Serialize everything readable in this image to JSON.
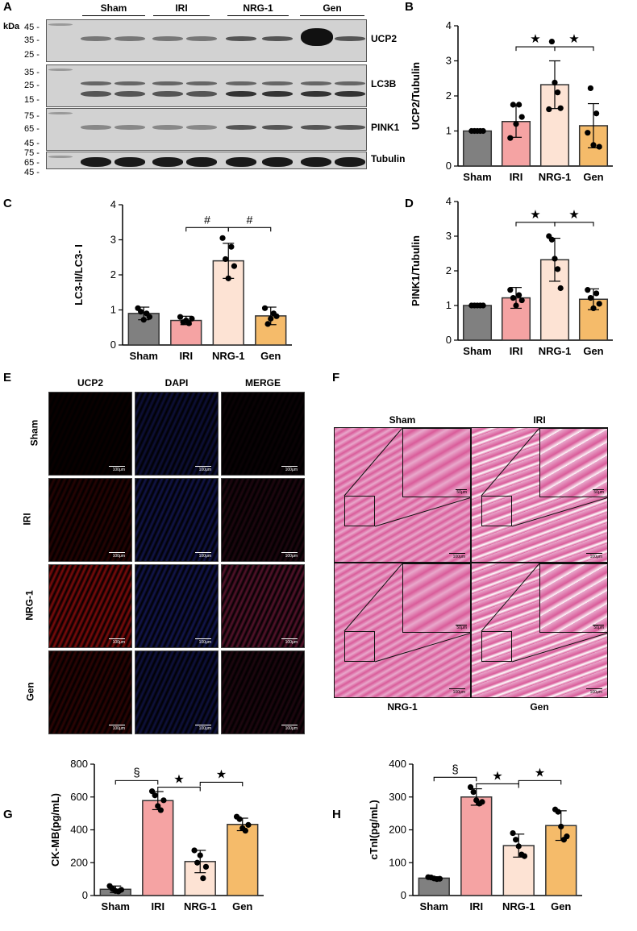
{
  "panels": {
    "A": "A",
    "B": "B",
    "C": "C",
    "D": "D",
    "E": "E",
    "F": "F",
    "G": "G",
    "H": "H"
  },
  "western_blot": {
    "groups": [
      "Sham",
      "IRI",
      "NRG-1",
      "Gen"
    ],
    "kda_label": "kDa",
    "rows": [
      {
        "name": "UCP2",
        "markers": [
          "45",
          "35",
          "25"
        ]
      },
      {
        "name": "LC3B",
        "markers": [
          "35",
          "25",
          "15"
        ]
      },
      {
        "name": "PINK1",
        "markers": [
          "75",
          "65",
          "45"
        ]
      },
      {
        "name": "Tubulin",
        "markers": [
          "75",
          "65",
          "45"
        ]
      }
    ]
  },
  "if_panel": {
    "columns": [
      "UCP2",
      "DAPI",
      "MERGE"
    ],
    "rows": [
      "Sham",
      "IRI",
      "NRG-1",
      "Gen"
    ],
    "scale_bar": "100μm",
    "colors": {
      "ucp2": "#8a0d0d",
      "dapi": "#1b1f6e",
      "merge": "#5e1530",
      "background": "#000000"
    }
  },
  "he_panel": {
    "labels": [
      "Sham",
      "IRI",
      "NRG-1",
      "Gen"
    ],
    "scale_bar_main": "100μm",
    "scale_bar_inset": "50μm",
    "colors": {
      "tissue": "#d95c9a",
      "tissue_light": "#e9a8cc",
      "gap": "#ffffff"
    }
  },
  "chart_data": [
    {
      "id": "B",
      "type": "bar",
      "categories": [
        "Sham",
        "IRI",
        "NRG-1",
        "Gen"
      ],
      "values": [
        1.0,
        1.27,
        2.32,
        1.15
      ],
      "errors": [
        0.0,
        0.45,
        0.68,
        0.63
      ],
      "points": [
        [
          1,
          1,
          1,
          1,
          1
        ],
        [
          0.8,
          1.75,
          1.2,
          1.75,
          1.4
        ],
        [
          1.62,
          3.55,
          2.38,
          2.1,
          1.65
        ],
        [
          0.95,
          2.22,
          0.6,
          1.5,
          0.55
        ]
      ],
      "ylabel": "UCP2/Tubulin",
      "ylim": [
        0,
        4
      ],
      "yticks": [
        0,
        1,
        2,
        3,
        4
      ],
      "significance": [
        {
          "from": 1,
          "to": 2,
          "symbol": "★"
        },
        {
          "from": 2,
          "to": 3,
          "symbol": "★"
        }
      ]
    },
    {
      "id": "C",
      "type": "bar",
      "categories": [
        "Sham",
        "IRI",
        "NRG-1",
        "Gen"
      ],
      "values": [
        0.9,
        0.7,
        2.4,
        0.83
      ],
      "errors": [
        0.18,
        0.12,
        0.5,
        0.25
      ],
      "points": [
        [
          1.05,
          0.95,
          0.72,
          0.9,
          0.8
        ],
        [
          0.8,
          0.65,
          0.7,
          0.62,
          0.75
        ],
        [
          3.05,
          2.45,
          1.9,
          2.8,
          2.25
        ],
        [
          1.05,
          0.6,
          0.75,
          0.9,
          0.82
        ]
      ],
      "ylabel": "LC3-II/LC3- I",
      "ylim": [
        0,
        4
      ],
      "yticks": [
        0,
        1,
        2,
        3,
        4
      ],
      "significance": [
        {
          "from": 1,
          "to": 2,
          "symbol": "#"
        },
        {
          "from": 2,
          "to": 3,
          "symbol": "#"
        }
      ]
    },
    {
      "id": "D",
      "type": "bar",
      "categories": [
        "Sham",
        "IRI",
        "NRG-1",
        "Gen"
      ],
      "values": [
        1.0,
        1.22,
        2.32,
        1.18
      ],
      "errors": [
        0.0,
        0.3,
        0.62,
        0.3
      ],
      "points": [
        [
          1,
          1,
          1,
          1,
          1
        ],
        [
          1.45,
          1.22,
          1.0,
          1.3,
          1.15
        ],
        [
          3.0,
          2.9,
          2.35,
          2.05,
          1.5
        ],
        [
          1.45,
          1.22,
          0.92,
          1.35,
          1.05
        ]
      ],
      "ylabel": "PINK1/Tubulin",
      "ylim": [
        0,
        4
      ],
      "yticks": [
        0,
        1,
        2,
        3,
        4
      ],
      "significance": [
        {
          "from": 1,
          "to": 2,
          "symbol": "★"
        },
        {
          "from": 2,
          "to": 3,
          "symbol": "★"
        }
      ]
    },
    {
      "id": "G",
      "type": "bar",
      "categories": [
        "Sham",
        "IRI",
        "NRG-1",
        "Gen"
      ],
      "values": [
        38,
        578,
        207,
        433
      ],
      "errors": [
        20,
        55,
        68,
        38
      ],
      "points": [
        [
          58,
          40,
          28,
          25,
          35
        ],
        [
          635,
          610,
          545,
          520,
          580
        ],
        [
          275,
          200,
          245,
          105,
          175
        ],
        [
          480,
          465,
          410,
          395,
          430
        ]
      ],
      "ylabel": "CK-MB(pg/mL)",
      "ylim": [
        0,
        800
      ],
      "yticks": [
        0,
        200,
        400,
        600,
        800
      ],
      "significance": [
        {
          "from": 0,
          "to": 1,
          "symbol": "§"
        },
        {
          "from": 1,
          "to": 2,
          "symbol": "★"
        },
        {
          "from": 2,
          "to": 3,
          "symbol": "★"
        }
      ]
    },
    {
      "id": "H",
      "type": "bar",
      "categories": [
        "Sham",
        "IRI",
        "NRG-1",
        "Gen"
      ],
      "values": [
        53,
        300,
        152,
        213
      ],
      "errors": [
        4,
        25,
        35,
        45
      ],
      "points": [
        [
          56,
          55,
          52,
          50,
          51
        ],
        [
          330,
          315,
          290,
          280,
          285
        ],
        [
          190,
          170,
          150,
          125,
          120
        ],
        [
          262,
          255,
          210,
          170,
          180
        ]
      ],
      "ylabel": "cTnI(pg/mL)",
      "ylim": [
        0,
        400
      ],
      "yticks": [
        0,
        100,
        200,
        300,
        400
      ],
      "significance": [
        {
          "from": 0,
          "to": 1,
          "symbol": "§"
        },
        {
          "from": 1,
          "to": 2,
          "symbol": "★"
        },
        {
          "from": 2,
          "to": 3,
          "symbol": "★"
        }
      ]
    }
  ],
  "bar_colors": [
    "#808080",
    "#f5a3a3",
    "#fde3d4",
    "#f5bb6a"
  ]
}
